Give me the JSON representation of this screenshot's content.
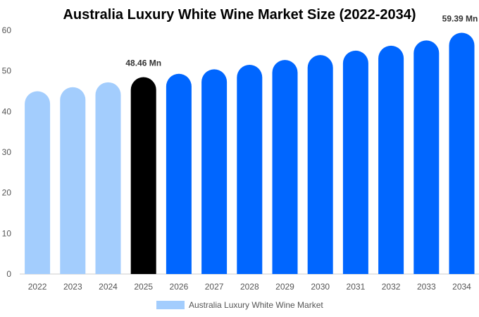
{
  "chart_data": {
    "type": "bar",
    "title": "Australia Luxury White Wine Market Size (2022-2034)",
    "categories": [
      "2022",
      "2023",
      "2024",
      "2025",
      "2026",
      "2027",
      "2028",
      "2029",
      "2030",
      "2031",
      "2032",
      "2033",
      "2034"
    ],
    "series": [
      {
        "name": "Australia Luxury White Wine Market",
        "values": [
          45.0,
          46.0,
          47.2,
          48.46,
          49.3,
          50.4,
          51.5,
          52.7,
          53.9,
          55.0,
          56.2,
          57.5,
          59.39
        ]
      }
    ],
    "data_labels": [
      {
        "category": "2025",
        "text": "48.46 Mn"
      },
      {
        "category": "2034",
        "text": "59.39 Mn"
      }
    ],
    "ylim": [
      0,
      60
    ],
    "yticks": [
      0,
      10,
      20,
      30,
      40,
      50,
      60
    ],
    "xlabel": "",
    "ylabel": "",
    "grid": false,
    "legend_position": "bottom",
    "colors": {
      "historical": "#a3cdfd",
      "current": "#000000",
      "forecast": "#0066ff",
      "legend_swatch": "#a3cdfd"
    },
    "color_groups": {
      "historical": [
        "2022",
        "2023",
        "2024"
      ],
      "current": [
        "2025"
      ],
      "forecast": [
        "2026",
        "2027",
        "2028",
        "2029",
        "2030",
        "2031",
        "2032",
        "2033",
        "2034"
      ]
    }
  }
}
